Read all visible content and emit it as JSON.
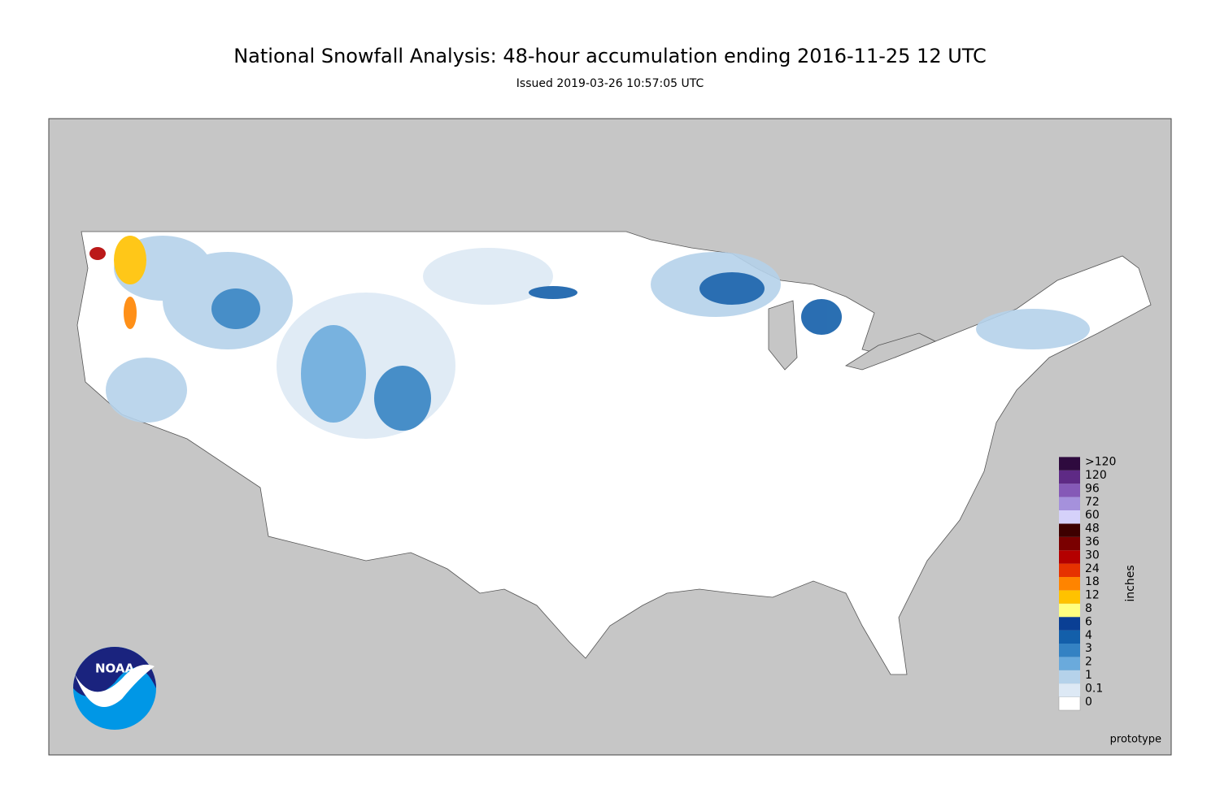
{
  "header": {
    "title": "National Snowfall Analysis: 48-hour accumulation ending 2016-11-25 12 UTC",
    "subtitle": "Issued 2019-03-26 10:57:05 UTC"
  },
  "legend": {
    "title": "inches",
    "items": [
      {
        "label": "0",
        "color": "#ffffff"
      },
      {
        "label": "0.1",
        "color": "#dde9f5"
      },
      {
        "label": "1",
        "color": "#b5d2ea"
      },
      {
        "label": "2",
        "color": "#6aaadc"
      },
      {
        "label": "3",
        "color": "#3482c3"
      },
      {
        "label": "4",
        "color": "#135faa"
      },
      {
        "label": "6",
        "color": "#0a3f94"
      },
      {
        "label": "8",
        "color": "#ffff80"
      },
      {
        "label": "12",
        "color": "#ffc200"
      },
      {
        "label": "18",
        "color": "#ff8400"
      },
      {
        "label": "24",
        "color": "#e63200"
      },
      {
        "label": "30",
        "color": "#b40000"
      },
      {
        "label": "36",
        "color": "#7a0000"
      },
      {
        "label": "48",
        "color": "#3d0000"
      },
      {
        "label": "60",
        "color": "#d5d1fa"
      },
      {
        "label": "72",
        "color": "#a591dc"
      },
      {
        "label": "96",
        "color": "#8559b7"
      },
      {
        "label": "120",
        "color": "#5e2a85"
      },
      {
        "label": ">120",
        "color": "#2e0a3e"
      }
    ]
  },
  "footer": {
    "note": "prototype"
  },
  "logo": {
    "text": "NOAA"
  }
}
